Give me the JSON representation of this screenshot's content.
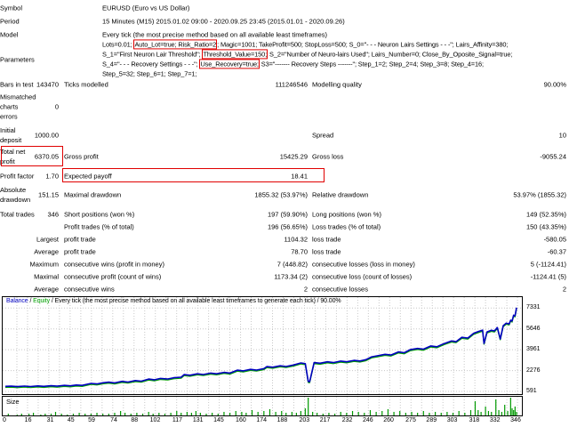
{
  "report": {
    "info_rows": [
      {
        "label": "Symbol",
        "value": "EURUSD (Euro vs US Dollar)"
      },
      {
        "label": "Period",
        "value": "15 Minutes (M15) 2015.01.02 09:00 - 2020.09.25 23:45 (2015.01.01 - 2020.09.26)"
      },
      {
        "label": "Model",
        "value": "Every tick (the most precise method based on all available least timeframes)"
      }
    ],
    "parameters": {
      "label": "Parameters",
      "lines": [
        [
          {
            "t": "Lots=0.01; "
          },
          {
            "t": "Auto_Lot=true; Risk_Ratio=2",
            "boxed": true
          },
          {
            "t": "; Magic=1001; TakeProfit=500; StopLoss=500; S_0=\"- - - Neuron Lairs Settings - - -\"; Lairs_Affinity=380;"
          }
        ],
        [
          {
            "t": "S_1=\"First Neuron Lair Threshold\"; "
          },
          {
            "t": "Threshold_Value=150;",
            "boxed": true
          },
          {
            "t": " S_2=\"Number of Neuro-lairs Used\"; Lairs_Number=0; Close_By_Oposite_Signal=true;"
          }
        ],
        [
          {
            "t": "S_4=\"- - - Recovery Settings - - -\"; "
          },
          {
            "t": "Use_Recovery=true;",
            "boxed": true
          },
          {
            "t": " S3=\"------- Recovery Steps -------\"; Step_1=2; Step_2=4; Step_3=8; Step_4=16;"
          }
        ],
        [
          {
            "t": "Step_5=32; Step_6=1; Step_7=1;"
          }
        ]
      ]
    },
    "stat_rows": [
      {
        "c1": [
          "Bars in test"
        ],
        "v1": "143470",
        "c3": "Ticks modelled",
        "v2": "111246546",
        "c5": "Modelling quality",
        "v3": "90.00%"
      },
      {
        "c1": [
          "Mismatched",
          "charts",
          "errors"
        ],
        "v1": "0"
      },
      {
        "c1": [
          "Initial",
          "deposit"
        ],
        "v1": "1000.00",
        "c5": "Spread",
        "v3": "10"
      },
      {
        "c1": [
          "Total net",
          "profit"
        ],
        "v1": "6370.05",
        "c3": "Gross profit",
        "v2": "15425.29",
        "c5": "Gross loss",
        "v3": "-9055.24",
        "box": "net"
      },
      {
        "c1": [
          "Profit factor"
        ],
        "v1": "1.70",
        "c3": "Expected payoff",
        "v2": "18.41",
        "box": "payoff"
      },
      {
        "c1": [
          "Absolute",
          "drawdown"
        ],
        "v1": "151.15",
        "c3": "Maximal drawdown",
        "v2": "1855.32 (53.97%)",
        "c5": "Relative drawdown",
        "v3": "53.97% (1855.32)"
      },
      {
        "c1": [
          "Total trades"
        ],
        "v1": "346",
        "c3": "Short positions (won %)",
        "v2": "197 (59.90%)",
        "c5": "Long positions (won %)",
        "v3": "149 (52.35%)"
      },
      {
        "c3": "Profit trades (% of total)",
        "v2": "196 (56.65%)",
        "c5": "Loss trades (% of total)",
        "v3": "150 (43.35%)"
      },
      {
        "v1": "Largest",
        "c3": "profit trade",
        "v2": "1104.32",
        "c5": "loss trade",
        "v3": "-580.05"
      },
      {
        "v1": "Average",
        "c3": "profit trade",
        "v2": "78.70",
        "c5": "loss trade",
        "v3": "-60.37"
      },
      {
        "v1": "Maximum",
        "c3": "consecutive wins (profit in money)",
        "v2": "7 (448.82)",
        "c5": "consecutive losses (loss in money)",
        "v3": "5 (-1124.41)"
      },
      {
        "v1": "Maximal",
        "c3": "consecutive profit (count of wins)",
        "v2": "1173.34 (2)",
        "c5": "consecutive loss (count of losses)",
        "v3": "-1124.41 (5)"
      },
      {
        "v1": "Average",
        "c3": "consecutive wins",
        "v2": "2",
        "c5": "consecutive losses",
        "v3": "2"
      }
    ]
  },
  "chart_data": {
    "type": "line",
    "legend": {
      "balance": "Balance",
      "sep": " / ",
      "equity": "Equity",
      "rest": " / Every tick (the most precise method based on all available least timeframes to generate each tick) / 90.00%"
    },
    "size_panel_label": "Size",
    "y_ticks": [
      "7331",
      "5646",
      "3961",
      "2276",
      "591"
    ],
    "y_tick_values": [
      7331,
      5646,
      3961,
      2276,
      591
    ],
    "x_ticks": [
      0,
      16,
      31,
      45,
      59,
      74,
      88,
      102,
      117,
      131,
      145,
      160,
      174,
      188,
      203,
      217,
      232,
      246,
      260,
      275,
      289,
      303,
      318,
      332,
      346
    ],
    "x_range": [
      0,
      346
    ],
    "y_range": [
      591,
      7331
    ],
    "grid": true,
    "legend_position": "top-left",
    "colors": {
      "balance": "#0000c0",
      "equity": "#00a000",
      "size_bars": "#009900",
      "grid": "#c8c8c8",
      "highlight": "#e00000"
    },
    "balance_series": [
      [
        0,
        1000
      ],
      [
        4,
        1012
      ],
      [
        8,
        978
      ],
      [
        13,
        1024
      ],
      [
        17,
        990
      ],
      [
        22,
        1038
      ],
      [
        26,
        1002
      ],
      [
        31,
        1052
      ],
      [
        35,
        1018
      ],
      [
        40,
        1080
      ],
      [
        44,
        1046
      ],
      [
        48,
        1112
      ],
      [
        52,
        1078
      ],
      [
        58,
        1240
      ],
      [
        62,
        1195
      ],
      [
        66,
        1292
      ],
      [
        70,
        1340
      ],
      [
        74,
        1285
      ],
      [
        79,
        1402
      ],
      [
        83,
        1345
      ],
      [
        88,
        1470
      ],
      [
        92,
        1415
      ],
      [
        97,
        1588
      ],
      [
        101,
        1535
      ],
      [
        105,
        1638
      ],
      [
        110,
        1600
      ],
      [
        114,
        1700
      ],
      [
        119,
        1745
      ],
      [
        121,
        1950
      ],
      [
        125,
        1900
      ],
      [
        130,
        2012
      ],
      [
        134,
        1955
      ],
      [
        139,
        2075
      ],
      [
        143,
        2015
      ],
      [
        148,
        2132
      ],
      [
        152,
        2075
      ],
      [
        157,
        2310
      ],
      [
        161,
        2255
      ],
      [
        166,
        2372
      ],
      [
        170,
        2315
      ],
      [
        175,
        2435
      ],
      [
        177,
        2600
      ],
      [
        181,
        2545
      ],
      [
        186,
        2662
      ],
      [
        190,
        2605
      ],
      [
        195,
        2725
      ],
      [
        200,
        2890
      ],
      [
        203,
        2835
      ],
      [
        205,
        1400
      ],
      [
        206,
        1385
      ],
      [
        209,
        2920
      ],
      [
        213,
        2872
      ],
      [
        218,
        2985
      ],
      [
        222,
        2925
      ],
      [
        227,
        3042
      ],
      [
        231,
        2985
      ],
      [
        236,
        3105
      ],
      [
        240,
        3048
      ],
      [
        244,
        3162
      ],
      [
        248,
        3390
      ],
      [
        252,
        3478
      ],
      [
        257,
        3592
      ],
      [
        261,
        3532
      ],
      [
        266,
        3788
      ],
      [
        270,
        3722
      ],
      [
        274,
        3962
      ],
      [
        279,
        4068
      ],
      [
        283,
        4005
      ],
      [
        288,
        4268
      ],
      [
        292,
        4205
      ],
      [
        297,
        4460
      ],
      [
        302,
        4672
      ],
      [
        305,
        4612
      ],
      [
        309,
        4962
      ],
      [
        313,
        4905
      ],
      [
        317,
        5292
      ],
      [
        320,
        5422
      ],
      [
        323,
        5545
      ],
      [
        324,
        4468
      ],
      [
        326,
        5402
      ],
      [
        329,
        5532
      ],
      [
        331,
        5482
      ],
      [
        333,
        5755
      ],
      [
        335,
        4828
      ],
      [
        337,
        5905
      ],
      [
        339,
        6105
      ],
      [
        341,
        6052
      ],
      [
        342,
        6352
      ],
      [
        343,
        6285
      ],
      [
        344,
        6755
      ],
      [
        345,
        6705
      ],
      [
        346,
        7370
      ]
    ],
    "size_series": [
      [
        2,
        2
      ],
      [
        8,
        1
      ],
      [
        11,
        2
      ],
      [
        16,
        2
      ],
      [
        19,
        3
      ],
      [
        24,
        1
      ],
      [
        27,
        2
      ],
      [
        31,
        2
      ],
      [
        34,
        4
      ],
      [
        38,
        2
      ],
      [
        42,
        1
      ],
      [
        46,
        2
      ],
      [
        50,
        3
      ],
      [
        54,
        2
      ],
      [
        58,
        2
      ],
      [
        62,
        3
      ],
      [
        66,
        2
      ],
      [
        70,
        2
      ],
      [
        74,
        3
      ],
      [
        78,
        5
      ],
      [
        81,
        3
      ],
      [
        85,
        2
      ],
      [
        89,
        3
      ],
      [
        93,
        2
      ],
      [
        97,
        4
      ],
      [
        100,
        2
      ],
      [
        104,
        3
      ],
      [
        108,
        2
      ],
      [
        112,
        3
      ],
      [
        116,
        5
      ],
      [
        119,
        3
      ],
      [
        123,
        4
      ],
      [
        126,
        3
      ],
      [
        129,
        5
      ],
      [
        132,
        3
      ],
      [
        136,
        2
      ],
      [
        140,
        3
      ],
      [
        144,
        2
      ],
      [
        148,
        4
      ],
      [
        152,
        3
      ],
      [
        156,
        5
      ],
      [
        160,
        4
      ],
      [
        163,
        3
      ],
      [
        167,
        6
      ],
      [
        171,
        4
      ],
      [
        175,
        5
      ],
      [
        179,
        7
      ],
      [
        183,
        4
      ],
      [
        187,
        5
      ],
      [
        190,
        3
      ],
      [
        194,
        4
      ],
      [
        197,
        3
      ],
      [
        200,
        5
      ],
      [
        203,
        8
      ],
      [
        205,
        21
      ],
      [
        208,
        4
      ],
      [
        211,
        3
      ],
      [
        215,
        2
      ],
      [
        219,
        3
      ],
      [
        223,
        2
      ],
      [
        227,
        4
      ],
      [
        231,
        3
      ],
      [
        235,
        5
      ],
      [
        239,
        4
      ],
      [
        243,
        3
      ],
      [
        247,
        6
      ],
      [
        251,
        4
      ],
      [
        255,
        5
      ],
      [
        259,
        7
      ],
      [
        263,
        4
      ],
      [
        267,
        5
      ],
      [
        271,
        3
      ],
      [
        275,
        4
      ],
      [
        279,
        3
      ],
      [
        283,
        5
      ],
      [
        287,
        3
      ],
      [
        291,
        4
      ],
      [
        295,
        3
      ],
      [
        299,
        4
      ],
      [
        303,
        3
      ],
      [
        307,
        5
      ],
      [
        311,
        3
      ],
      [
        315,
        6
      ],
      [
        318,
        16
      ],
      [
        320,
        6
      ],
      [
        322,
        4
      ],
      [
        325,
        10
      ],
      [
        327,
        5
      ],
      [
        329,
        4
      ],
      [
        332,
        18
      ],
      [
        334,
        6
      ],
      [
        336,
        4
      ],
      [
        338,
        12
      ],
      [
        340,
        5
      ],
      [
        342,
        20
      ],
      [
        343,
        8
      ],
      [
        344,
        6
      ],
      [
        345,
        10
      ],
      [
        346,
        4
      ]
    ]
  }
}
